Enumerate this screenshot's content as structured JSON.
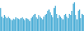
{
  "chart_data": {
    "type": "bar",
    "values": [
      32,
      20,
      18,
      22,
      20,
      18,
      20,
      18,
      16,
      15,
      17,
      16,
      19,
      18,
      17,
      16,
      18,
      19,
      17,
      15,
      18,
      17,
      16,
      14,
      18,
      20,
      22,
      24,
      19,
      17,
      22,
      20,
      18,
      16,
      20,
      22,
      24,
      28,
      30,
      26,
      22,
      19,
      32,
      35,
      24,
      18,
      22,
      20,
      18,
      16,
      22,
      24,
      20,
      18,
      24,
      22,
      28,
      38,
      40,
      22,
      16,
      28,
      30,
      18,
      24,
      22
    ],
    "color": "#4badd6",
    "ylim": [
      0,
      43.2
    ],
    "grid": false,
    "tick_labels": false
  }
}
